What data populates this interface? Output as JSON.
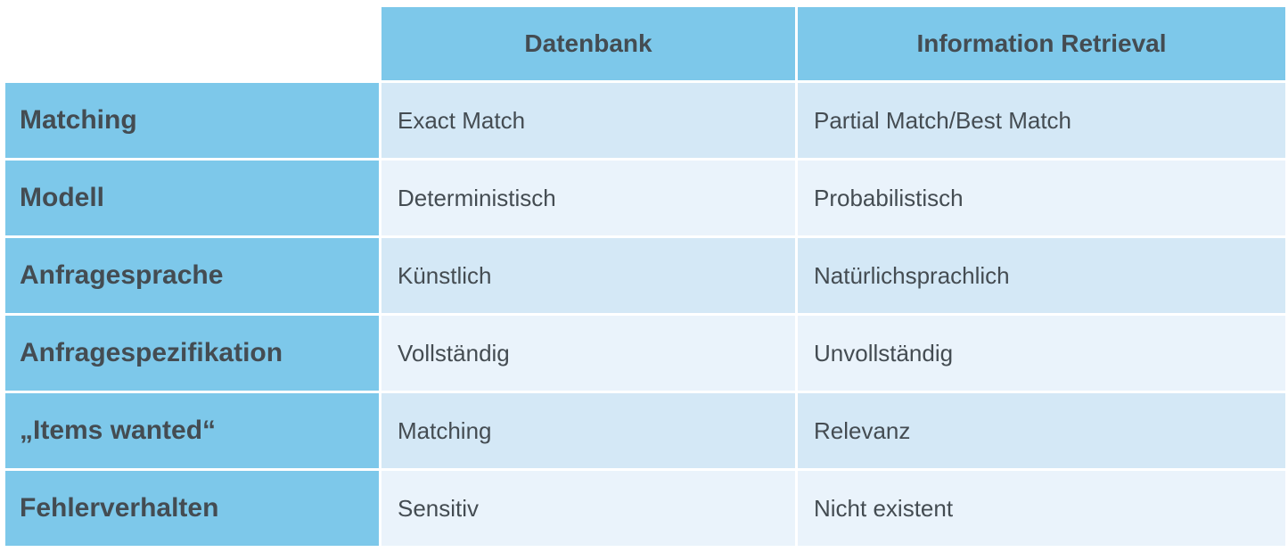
{
  "table": {
    "columns": [
      "Datenbank",
      "Information Retrieval"
    ],
    "rows": [
      {
        "label": "Matching",
        "datenbank": "Exact Match",
        "ir": "Partial Match/Best Match"
      },
      {
        "label": "Modell",
        "datenbank": "Deterministisch",
        "ir": "Probabilistisch"
      },
      {
        "label": "Anfragesprache",
        "datenbank": "Künstlich",
        "ir": "Natürlichsprachlich"
      },
      {
        "label": "Anfragespezifikation",
        "datenbank": "Vollständig",
        "ir": "Unvollständig"
      },
      {
        "label": "„Items wanted“",
        "datenbank": "Matching",
        "ir": "Relevanz"
      },
      {
        "label": "Fehlerverhalten",
        "datenbank": "Sensitiv",
        "ir": "Nicht existent"
      }
    ]
  },
  "colors": {
    "header_bg": "#7dc8ea",
    "row_odd_bg": "#d4e8f6",
    "row_even_bg": "#eaf3fb",
    "text": "#444c52"
  }
}
